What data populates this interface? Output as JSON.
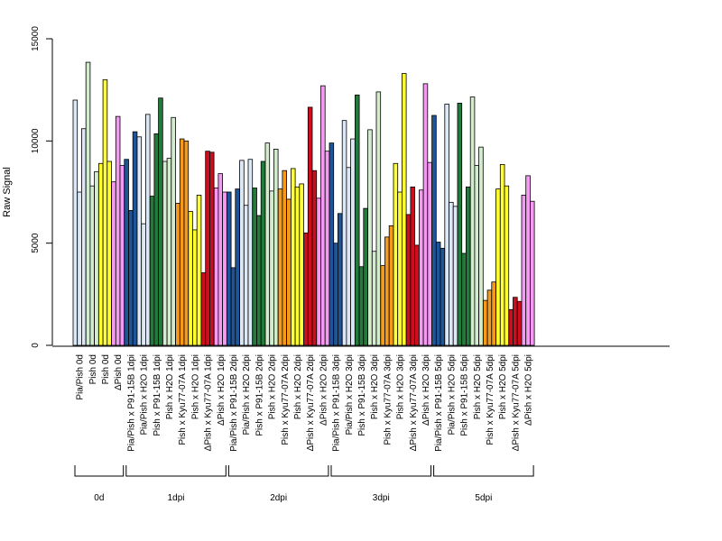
{
  "chart_data": {
    "type": "bar",
    "ylabel": "Raw Signal",
    "ylim": [
      0,
      15000
    ],
    "yticks": [
      0,
      5000,
      10000,
      15000
    ],
    "grid": false,
    "legend": "none",
    "colors": {
      "Pia/Pish": "#dde8f6",
      "P91-15B": "#1e5599",
      "H2O": "#dde8f6",
      "Pish": "#d2eccd",
      "Pish P91-15B": "#237a3a",
      "Pish H2O": "#d2eccd",
      "Pish 0d": "#d2eccd",
      "Pish 0d yellow": "#ffff33",
      "Kyu77": "#f59a1a",
      "Pish H2O yellow": "#ffff33",
      "dPish Kyu77": "#cc0e1f",
      "dPish H2O": "#f59af2"
    },
    "categories": [
      "Pia/Pish 0d",
      "Pish 0d",
      "Pish 0d",
      "ΔPish 0d",
      "Pia/Pish x P91-15B 1dpi",
      "Pia/Pish x H2O 1dpi",
      "Pish x P91-15B 1dpi",
      "Pish x H2O 1dpi",
      "Pish x Kyu77-07A 1dpi",
      "Pish x H2O 1dpi",
      "ΔPish x Kyu77-07A 1dpi",
      "ΔPish x H2O 1dpi",
      "Pia/Pish x P91-15B 2dpi",
      "Pia/Pish x H2O 2dpi",
      "Pish x P91-15B 2dpi",
      "Pish x H2O 2dpi",
      "Pish x Kyu77-07A 2dpi",
      "Pish x H2O 2dpi",
      "ΔPish x Kyu77-07A 2dpi",
      "ΔPish x H2O 2dpi",
      "Pia/Pish x P91-15B 3dpi",
      "Pia/Pish x H2O 3dpi",
      "Pish x P91-15B 3dpi",
      "Pish x H2O 3dpi",
      "Pish x Kyu77-07A 3dpi",
      "Pish x H2O 3dpi",
      "ΔPish x Kyu77-07A 3dpi",
      "ΔPish x H2O 3dpi",
      "Pia/Pish x P91-15B 5dpi",
      "Pia/Pish x H2O 5dpi",
      "Pish x P91-15B 5dpi",
      "Pish x H2O 5dpi",
      "Pish x Kyu77-07A 5dpi",
      "Pish x H2O 5dpi",
      "ΔPish x Kyu77-07A 5dpi",
      "ΔPish x H2O 5dpi"
    ],
    "series_colors": [
      "#dde8f6",
      "#d2eccd",
      "#ffff33",
      "#f59af2",
      "#1e5599",
      "#dde8f6",
      "#237a3a",
      "#d2eccd",
      "#f59a1a",
      "#ffff33",
      "#cc0e1f",
      "#f59af2",
      "#1e5599",
      "#dde8f6",
      "#237a3a",
      "#d2eccd",
      "#f59a1a",
      "#ffff33",
      "#cc0e1f",
      "#f59af2",
      "#1e5599",
      "#dde8f6",
      "#237a3a",
      "#d2eccd",
      "#f59a1a",
      "#ffff33",
      "#cc0e1f",
      "#f59af2",
      "#1e5599",
      "#dde8f6",
      "#237a3a",
      "#d2eccd",
      "#f59a1a",
      "#ffff33",
      "#cc0e1f",
      "#f59af2"
    ],
    "values": [
      [
        12000,
        7500,
        10600
      ],
      [
        13850,
        7800,
        8500
      ],
      [
        8900,
        13000,
        9000
      ],
      [
        8000,
        11200,
        8800
      ],
      [
        9100,
        6600,
        10450
      ],
      [
        10200,
        5950,
        11300
      ],
      [
        7300,
        10350,
        12100
      ],
      [
        9000,
        9150,
        11150
      ],
      [
        6950,
        10100,
        10000
      ],
      [
        6550,
        5650,
        7350
      ],
      [
        3550,
        9500,
        9450
      ],
      [
        7700,
        8400,
        7500
      ],
      [
        7500,
        3800,
        7650
      ],
      [
        9050,
        6850,
        9100
      ],
      [
        7700,
        6350,
        9000
      ],
      [
        9900,
        7550,
        9600
      ],
      [
        7650,
        8550,
        7150
      ],
      [
        8650,
        7750,
        7900
      ],
      [
        5500,
        11650,
        8550
      ],
      [
        7200,
        12700,
        9500
      ],
      [
        9900,
        5000,
        6450
      ],
      [
        11000,
        8700,
        10100
      ],
      [
        12250,
        3850,
        6700
      ],
      [
        10550,
        4600,
        12400
      ],
      [
        3900,
        5300,
        5850
      ],
      [
        8900,
        7500,
        13300
      ],
      [
        6400,
        7750,
        4900
      ],
      [
        7600,
        12800,
        8950
      ],
      [
        11250,
        5050,
        4750
      ],
      [
        11800,
        7000,
        6800
      ],
      [
        11850,
        4500,
        7750
      ],
      [
        12150,
        8800,
        9700
      ],
      [
        2200,
        2700,
        3100
      ],
      [
        7650,
        8850,
        7800
      ],
      [
        1750,
        2350,
        2150
      ],
      [
        7350,
        8300,
        7050
      ]
    ],
    "groups": [
      {
        "label": "0d",
        "first": 0,
        "last": 3
      },
      {
        "label": "1dpi",
        "first": 4,
        "last": 11
      },
      {
        "label": "2dpi",
        "first": 12,
        "last": 19
      },
      {
        "label": "3dpi",
        "first": 20,
        "last": 27
      },
      {
        "label": "5dpi",
        "first": 28,
        "last": 35
      }
    ]
  }
}
